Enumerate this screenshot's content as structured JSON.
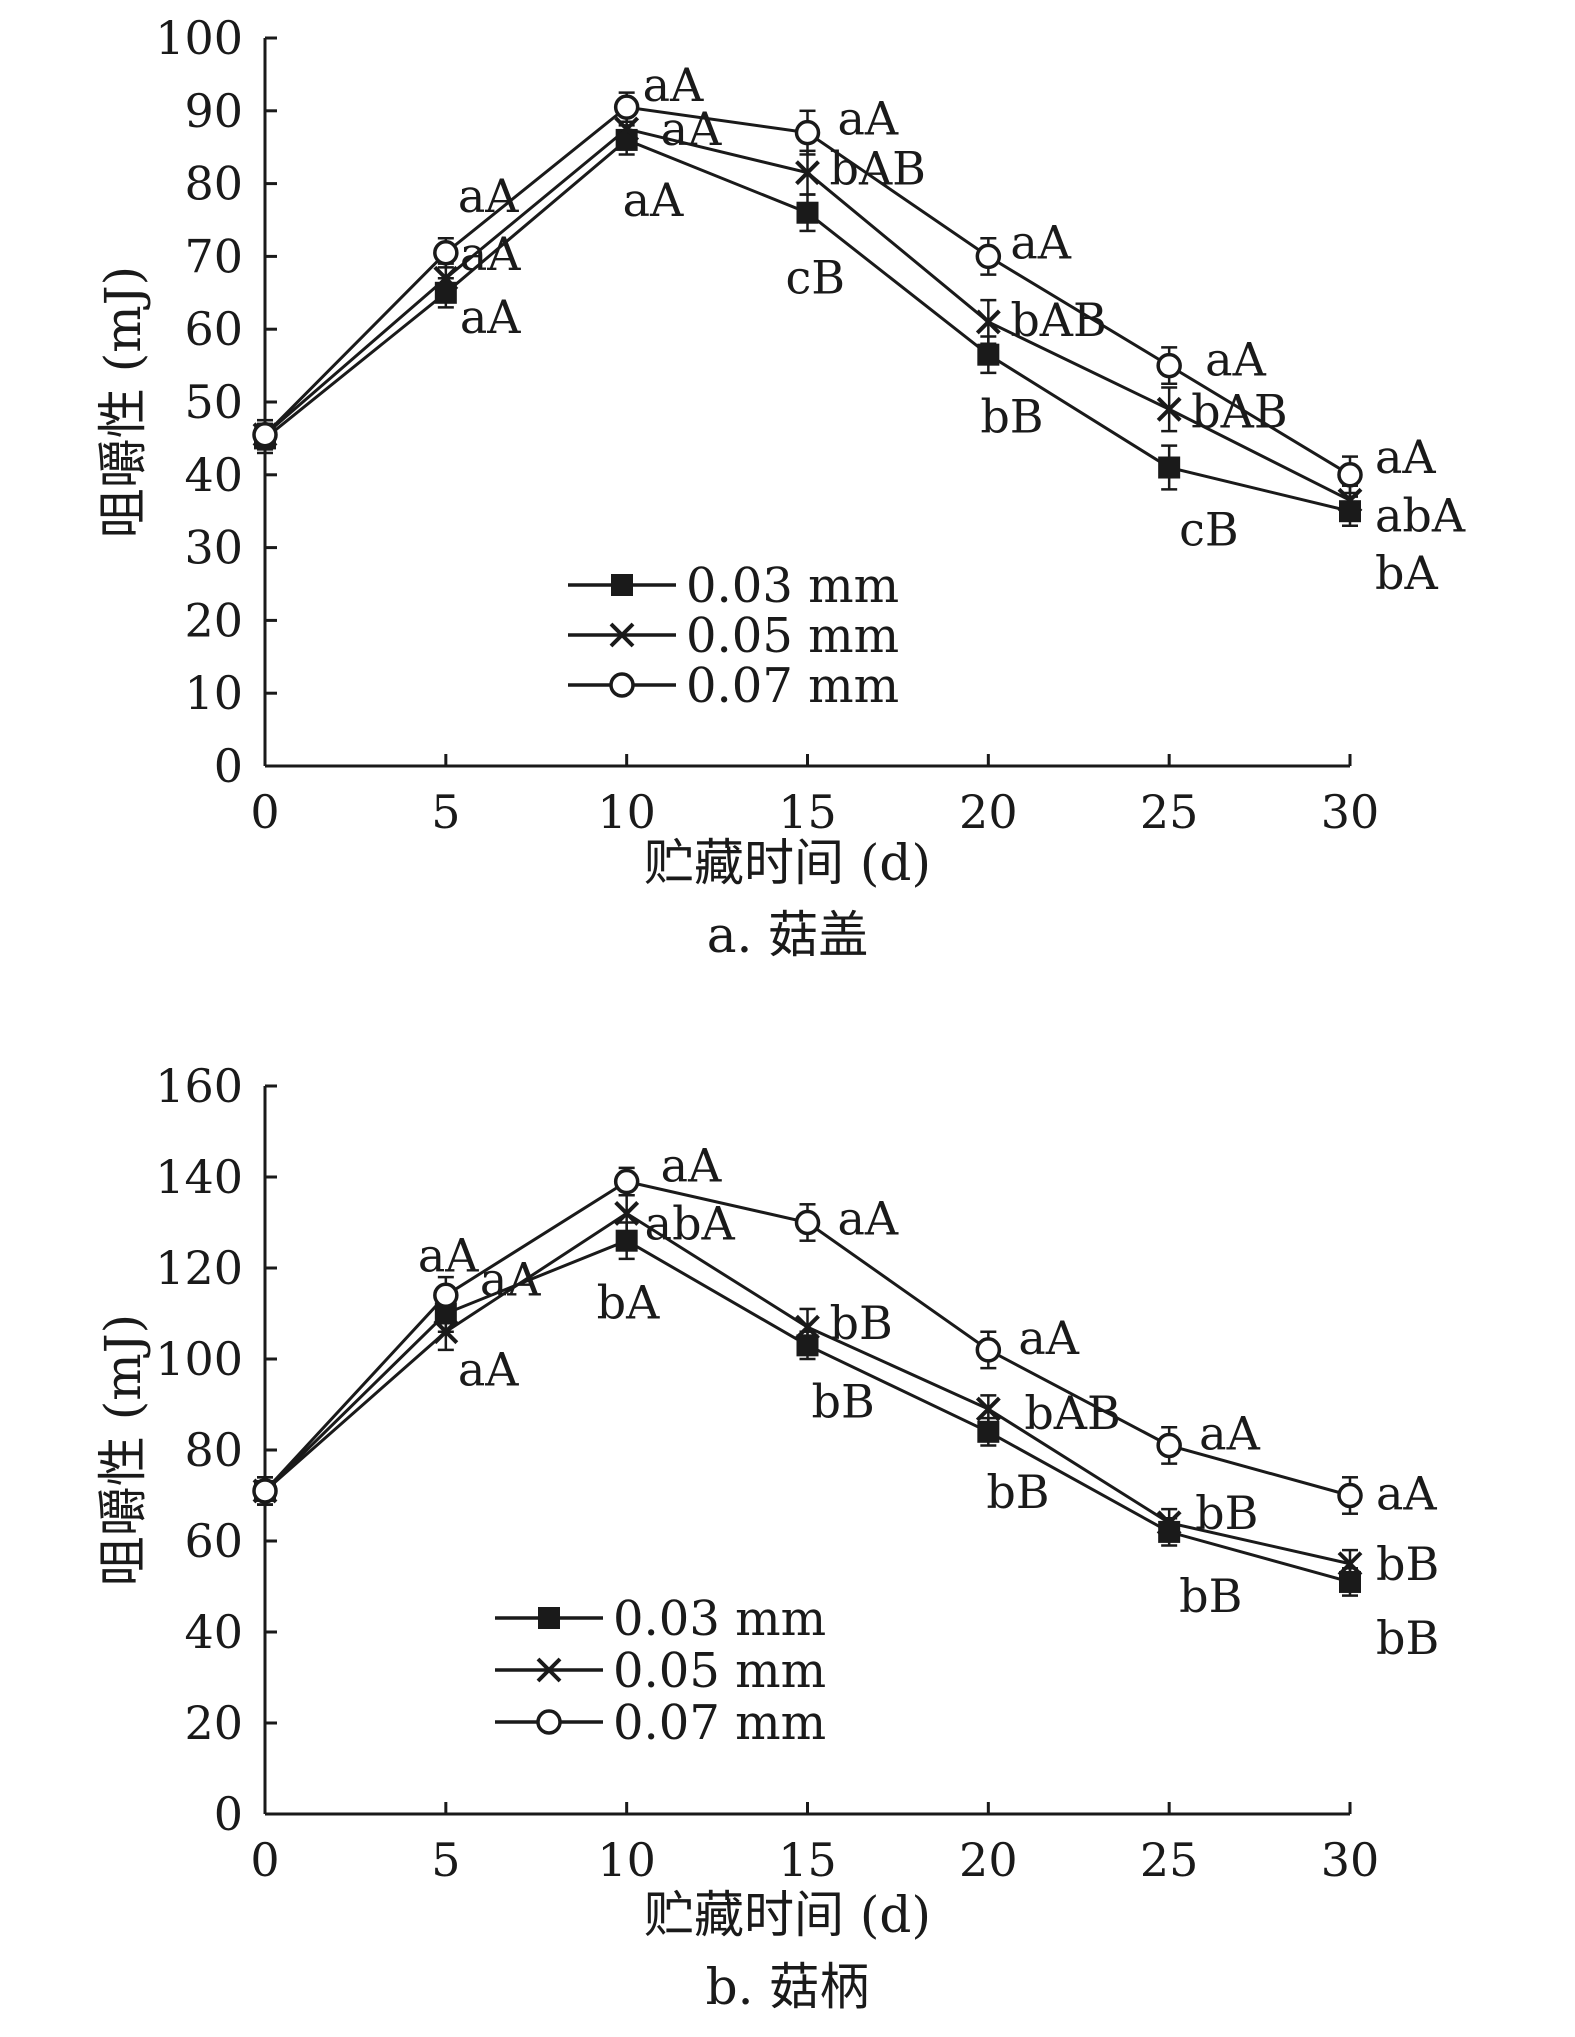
{
  "chart_data": [
    {
      "type": "line",
      "caption": "a. 菇盖",
      "xlabel": "贮藏时间 (d)",
      "ylabel": "咀嚼性 (mJ)",
      "x": [
        0,
        5,
        10,
        15,
        20,
        25,
        30
      ],
      "xlim": [
        0,
        30
      ],
      "ylim": [
        0,
        100
      ],
      "xticks": [
        "0",
        "5",
        "10",
        "15",
        "20",
        "25",
        "30"
      ],
      "yticks": [
        "0",
        "10",
        "20",
        "30",
        "40",
        "50",
        "60",
        "70",
        "80",
        "90",
        "100"
      ],
      "grid": false,
      "legend_position": "lower-center",
      "series": [
        {
          "name": "0.03 mm",
          "marker": "square",
          "values": [
            45,
            65,
            86,
            76,
            56.5,
            41,
            35
          ],
          "errors": [
            2,
            2,
            2,
            2.5,
            2.5,
            3,
            2
          ],
          "labels": [
            "",
            "aA",
            "aA",
            "cB",
            "bB",
            "cB",
            "bA"
          ]
        },
        {
          "name": "0.05 mm",
          "marker": "x",
          "values": [
            45.5,
            67,
            87.5,
            81.5,
            61,
            49,
            36.5
          ],
          "errors": [
            2,
            2,
            2,
            3,
            3,
            3,
            2
          ],
          "labels": [
            "",
            "aA",
            "aA",
            "bAB",
            "bAB",
            "bAB",
            "abA"
          ]
        },
        {
          "name": "0.07 mm",
          "marker": "circle",
          "values": [
            45.5,
            70.5,
            90.5,
            87,
            70,
            55,
            40
          ],
          "errors": [
            2,
            2,
            2,
            3,
            2.5,
            2.5,
            2.5
          ],
          "labels": [
            "",
            "aA",
            "aA",
            "aA",
            "aA",
            "aA",
            "aA"
          ]
        }
      ]
    },
    {
      "type": "line",
      "caption": "b. 菇柄",
      "xlabel": "贮藏时间 (d)",
      "ylabel": "咀嚼性 (mJ)",
      "x": [
        0,
        5,
        10,
        15,
        20,
        25,
        30
      ],
      "xlim": [
        0,
        30
      ],
      "ylim": [
        0,
        160
      ],
      "xticks": [
        "0",
        "5",
        "10",
        "15",
        "20",
        "25",
        "30"
      ],
      "yticks": [
        "0",
        "20",
        "40",
        "60",
        "80",
        "100",
        "120",
        "140",
        "160"
      ],
      "grid": false,
      "legend_position": "lower-left",
      "series": [
        {
          "name": "0.03 mm",
          "marker": "square",
          "values": [
            71,
            110,
            126,
            103,
            84,
            62,
            51
          ],
          "errors": [
            3,
            4,
            4,
            3,
            3,
            3,
            3
          ],
          "labels": [
            "",
            "aA",
            "bA",
            "bB",
            "bB",
            "bB",
            "bB"
          ]
        },
        {
          "name": "0.05 mm",
          "marker": "x",
          "values": [
            71,
            106,
            132,
            107,
            89,
            64,
            55
          ],
          "errors": [
            3,
            4,
            4,
            4,
            3,
            3,
            3
          ],
          "labels": [
            "",
            "aA",
            "abA",
            "bB",
            "bAB",
            "bB",
            "bB"
          ]
        },
        {
          "name": "0.07 mm",
          "marker": "circle",
          "values": [
            71,
            114,
            139,
            130,
            102,
            81,
            70
          ],
          "errors": [
            3,
            4,
            3,
            4,
            4,
            4,
            4
          ],
          "labels": [
            "",
            "aA",
            "aA",
            "aA",
            "aA",
            "aA",
            "aA"
          ]
        }
      ]
    }
  ]
}
